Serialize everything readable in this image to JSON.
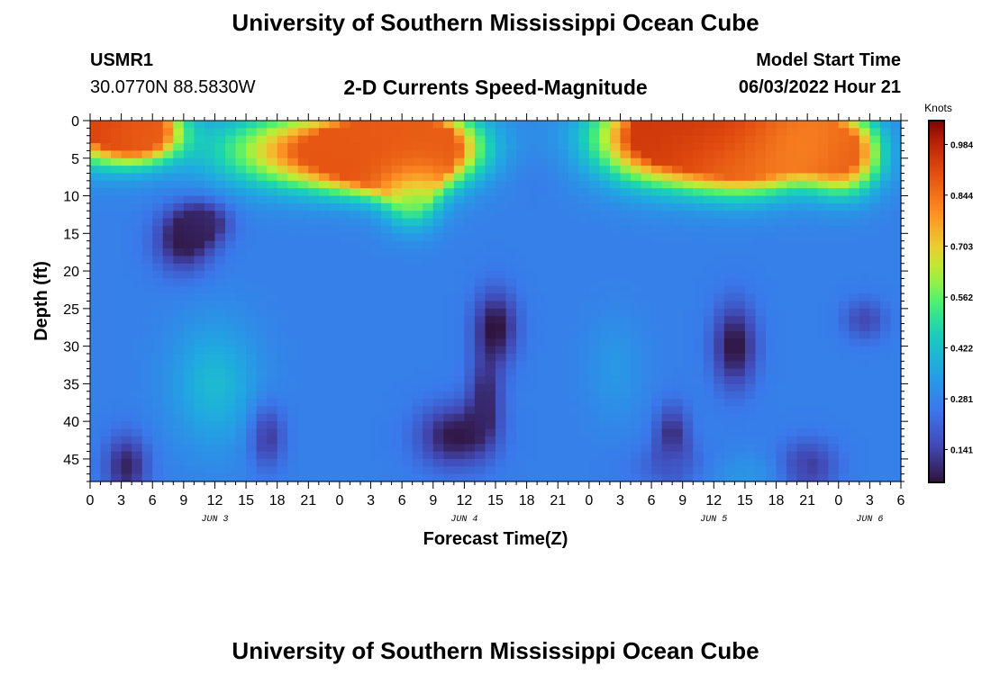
{
  "header": {
    "title": "University of Southern Mississippi Ocean Cube",
    "station": "USMR1",
    "coordinates": "30.0770N  88.5830W",
    "subtitle": "2-D Currents Speed-Magnitude",
    "model_start_label": "Model Start Time",
    "model_start_value": "06/03/2022 Hour 21"
  },
  "footer": {
    "title": "University of Southern Mississippi Ocean Cube"
  },
  "chart_data": {
    "type": "heatmap",
    "title": "2-D Currents Speed-Magnitude",
    "xlabel": "Forecast Time(Z)",
    "ylabel": "Depth (ft)",
    "colorbar_label": "Knots",
    "x_tick_labels": [
      "0",
      "3",
      "6",
      "9",
      "12",
      "15",
      "18",
      "21",
      "0",
      "3",
      "6",
      "9",
      "12",
      "15",
      "18",
      "21",
      "0",
      "3",
      "6",
      "9",
      "12",
      "15",
      "18",
      "21",
      "0",
      "3",
      "6"
    ],
    "date_labels": [
      {
        "label": "JUN 3",
        "hour": 12
      },
      {
        "label": "JUN 4",
        "hour": 36
      },
      {
        "label": "JUN 5",
        "hour": 60
      },
      {
        "label": "JUN 6",
        "hour": 75
      }
    ],
    "xlim_hours": [
      0,
      78
    ],
    "ylim_depth_ft": [
      0,
      48
    ],
    "y_ticks": [
      0,
      5,
      10,
      15,
      20,
      25,
      30,
      35,
      40,
      45
    ],
    "y_inverted": true,
    "colorbar_ticks": [
      0.141,
      0.281,
      0.422,
      0.562,
      0.703,
      0.844,
      0.984
    ],
    "value_range": [
      0.05,
      1.05
    ],
    "features": [
      {
        "hour": 1.5,
        "depth": 0.5,
        "hour_spread": 3.5,
        "depth_spread": 3.5,
        "value": 0.93
      },
      {
        "hour": 5,
        "depth": 1.5,
        "hour_spread": 2.5,
        "depth_spread": 2.5,
        "value": 0.86
      },
      {
        "hour": 23,
        "depth": 4,
        "hour_spread": 7,
        "depth_spread": 3.5,
        "value": 0.89
      },
      {
        "hour": 29,
        "depth": 5,
        "hour_spread": 4,
        "depth_spread": 3,
        "value": 0.9
      },
      {
        "hour": 31,
        "depth": 3,
        "hour_spread": 4,
        "depth_spread": 3,
        "value": 0.87
      },
      {
        "hour": 31,
        "depth": 10.5,
        "hour_spread": 2,
        "depth_spread": 3,
        "value": 0.52
      },
      {
        "hour": 42.5,
        "depth": 6.5,
        "hour_spread": 2.3,
        "depth_spread": 2.8,
        "value": 0.25
      },
      {
        "hour": 55,
        "depth": 2.5,
        "hour_spread": 4.5,
        "depth_spread": 4,
        "value": 0.94
      },
      {
        "hour": 61,
        "depth": 1,
        "hour_spread": 5,
        "depth_spread": 3,
        "value": 0.96
      },
      {
        "hour": 63,
        "depth": 5,
        "hour_spread": 4,
        "depth_spread": 3.5,
        "value": 0.84
      },
      {
        "hour": 68,
        "depth": 2.5,
        "hour_spread": 3,
        "depth_spread": 3,
        "value": 0.77
      },
      {
        "hour": 72.5,
        "depth": 4.5,
        "hour_spread": 2.5,
        "depth_spread": 3.5,
        "value": 0.88
      },
      {
        "hour": 9,
        "depth": 16,
        "hour_spread": 2,
        "depth_spread": 3,
        "value": 0.06
      },
      {
        "hour": 11,
        "depth": 13.5,
        "hour_spread": 1.8,
        "depth_spread": 2,
        "value": 0.09
      },
      {
        "hour": 12,
        "depth": 35,
        "hour_spread": 3,
        "depth_spread": 6,
        "value": 0.41
      },
      {
        "hour": 3.5,
        "depth": 46,
        "hour_spread": 1.5,
        "depth_spread": 3,
        "value": 0.08
      },
      {
        "hour": 17,
        "depth": 42,
        "hour_spread": 1.2,
        "depth_spread": 3,
        "value": 0.11
      },
      {
        "hour": 39,
        "depth": 27.5,
        "hour_spread": 1.5,
        "depth_spread": 3.5,
        "value": 0.05
      },
      {
        "hour": 38,
        "depth": 37,
        "hour_spread": 1.2,
        "depth_spread": 4,
        "value": 0.1
      },
      {
        "hour": 35,
        "depth": 42,
        "hour_spread": 2.5,
        "depth_spread": 3,
        "value": 0.06
      },
      {
        "hour": 50.5,
        "depth": 33,
        "hour_spread": 2,
        "depth_spread": 5,
        "value": 0.33
      },
      {
        "hour": 56,
        "depth": 42,
        "hour_spread": 1.2,
        "depth_spread": 3,
        "value": 0.1
      },
      {
        "hour": 56,
        "depth": 46,
        "hour_spread": 3,
        "depth_spread": 2,
        "value": 0.2
      },
      {
        "hour": 62,
        "depth": 30,
        "hour_spread": 1.5,
        "depth_spread": 4,
        "value": 0.05
      },
      {
        "hour": 63,
        "depth": 47,
        "hour_spread": 3,
        "depth_spread": 2,
        "value": 0.33
      },
      {
        "hour": 69,
        "depth": 46,
        "hour_spread": 2,
        "depth_spread": 2.5,
        "value": 0.12
      },
      {
        "hour": 74.5,
        "depth": 26.5,
        "hour_spread": 1.5,
        "depth_spread": 2,
        "value": 0.15
      }
    ]
  }
}
